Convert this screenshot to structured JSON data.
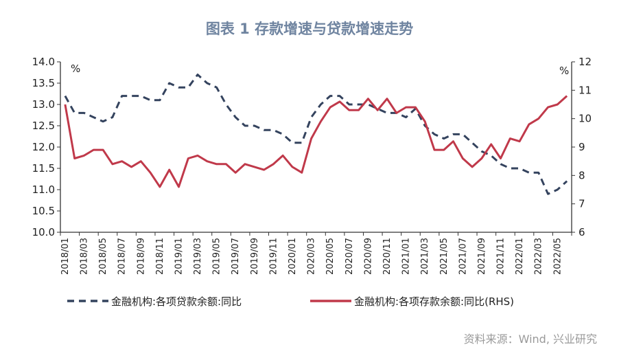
{
  "title": "图表 1  存款增速与贷款增速走势",
  "source": "资料来源：Wind, 兴业研究",
  "chart_data": {
    "type": "line",
    "title": "图表 1  存款增速与贷款增速走势",
    "left_unit": "%",
    "right_unit": "%",
    "ylim_left": [
      10.0,
      14.0
    ],
    "ylim_right": [
      6,
      12
    ],
    "yticks_left": [
      "14.0",
      "13.5",
      "13.0",
      "12.5",
      "12.0",
      "11.5",
      "11.0",
      "10.5",
      "10.0"
    ],
    "yticks_right": [
      "12",
      "11",
      "10",
      "9",
      "8",
      "7",
      "6"
    ],
    "grid": false,
    "legend_position": "bottom",
    "x": [
      "2018/01",
      "2018/02",
      "2018/03",
      "2018/04",
      "2018/05",
      "2018/06",
      "2018/07",
      "2018/08",
      "2018/09",
      "2018/10",
      "2018/11",
      "2018/12",
      "2019/01",
      "2019/02",
      "2019/03",
      "2019/04",
      "2019/05",
      "2019/06",
      "2019/07",
      "2019/08",
      "2019/09",
      "2019/10",
      "2019/11",
      "2019/12",
      "2020/01",
      "2020/02",
      "2020/03",
      "2020/04",
      "2020/05",
      "2020/06",
      "2020/07",
      "2020/08",
      "2020/09",
      "2020/10",
      "2020/11",
      "2020/12",
      "2021/01",
      "2021/02",
      "2021/03",
      "2021/04",
      "2021/05",
      "2021/06",
      "2021/07",
      "2021/08",
      "2021/09",
      "2021/10",
      "2021/11",
      "2021/12",
      "2022/01",
      "2022/02",
      "2022/03",
      "2022/04",
      "2022/05",
      "2022/06"
    ],
    "xtick_labels": [
      "2018/01",
      "2018/03",
      "2018/05",
      "2018/07",
      "2018/09",
      "2018/11",
      "2019/01",
      "2019/03",
      "2019/05",
      "2019/07",
      "2019/09",
      "2019/11",
      "2020/01",
      "2020/03",
      "2020/05",
      "2020/07",
      "2020/09",
      "2020/11",
      "2021/01",
      "2021/03",
      "2021/05",
      "2021/07",
      "2021/09",
      "2021/11",
      "2022/01",
      "2022/03",
      "2022/05"
    ],
    "series": [
      {
        "name": "金融机构:各项贷款余额:同比",
        "axis": "left",
        "style": "dashed",
        "color": "#34435e",
        "values": [
          13.2,
          12.8,
          12.8,
          12.7,
          12.6,
          12.7,
          13.2,
          13.2,
          13.2,
          13.1,
          13.1,
          13.5,
          13.4,
          13.4,
          13.7,
          13.5,
          13.4,
          13.0,
          12.7,
          12.5,
          12.5,
          12.4,
          12.4,
          12.3,
          12.1,
          12.1,
          12.7,
          13.0,
          13.2,
          13.2,
          13.0,
          13.0,
          13.0,
          12.9,
          12.8,
          12.8,
          12.7,
          12.9,
          12.5,
          12.3,
          12.2,
          12.3,
          12.3,
          12.1,
          11.9,
          11.8,
          11.6,
          11.5,
          11.5,
          11.4,
          11.4,
          10.9,
          11.0,
          11.2
        ]
      },
      {
        "name": "金融机构:各项存款余额:同比(RHS)",
        "axis": "right",
        "style": "solid",
        "color": "#c0394a",
        "values": [
          10.5,
          8.6,
          8.7,
          8.9,
          8.9,
          8.4,
          8.5,
          8.3,
          8.5,
          8.1,
          7.6,
          8.2,
          7.6,
          8.6,
          8.7,
          8.5,
          8.4,
          8.4,
          8.1,
          8.4,
          8.3,
          8.2,
          8.4,
          8.7,
          8.3,
          8.1,
          9.3,
          9.9,
          10.4,
          10.6,
          10.3,
          10.3,
          10.7,
          10.3,
          10.7,
          10.2,
          10.4,
          10.4,
          9.9,
          8.9,
          8.9,
          9.2,
          8.6,
          8.3,
          8.6,
          9.1,
          8.6,
          9.3,
          9.2,
          9.8,
          10.0,
          10.4,
          10.5,
          10.8
        ]
      }
    ]
  }
}
